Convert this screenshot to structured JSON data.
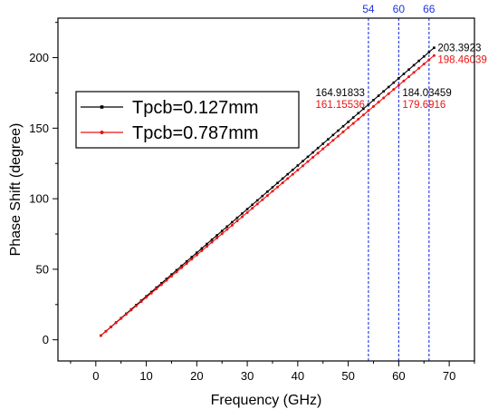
{
  "chart_data": {
    "type": "line",
    "xlabel": "Frequency (GHz)",
    "ylabel": "Phase Shift (degree)",
    "xlim": [
      -7.5,
      75
    ],
    "ylim": [
      -15,
      228
    ],
    "x_ticks": [
      0,
      10,
      20,
      30,
      40,
      50,
      60,
      70
    ],
    "y_ticks": [
      0,
      50,
      100,
      150,
      200
    ],
    "x_tick_labels": [
      "0",
      "10",
      "20",
      "30",
      "40",
      "50",
      "60",
      "70"
    ],
    "y_tick_labels": [
      "0",
      "50",
      "100",
      "150",
      "200"
    ],
    "grid": false,
    "legend_position": "upper-left",
    "series": [
      {
        "name": "Tpcb=0.127mm",
        "color": "#000000",
        "x_start": 1,
        "x_end": 67,
        "x_step": 1,
        "y_start": 3.0,
        "y_end": 207.0,
        "marker": "square"
      },
      {
        "name": "Tpcb=0.787mm",
        "color": "#ee1111",
        "x_start": 1,
        "x_end": 67,
        "x_step": 1,
        "y_start": 3.0,
        "y_end": 201.5,
        "marker": "circle"
      }
    ],
    "vlines": [
      {
        "x": 54,
        "label": "54",
        "color": "#2233dd"
      },
      {
        "x": 60,
        "label": "60",
        "color": "#2233dd"
      },
      {
        "x": 66,
        "label": "66",
        "color": "#2233dd"
      }
    ],
    "annotations": [
      {
        "text": "164.91833",
        "color": "#000000",
        "at_x": 54,
        "at_y": 164.92,
        "side": "left",
        "line": 0
      },
      {
        "text": "161.15536",
        "color": "#ee1111",
        "at_x": 54,
        "at_y": 164.92,
        "side": "left",
        "line": 1
      },
      {
        "text": "184.03459",
        "color": "#000000",
        "at_x": 60,
        "at_y": 164.92,
        "side": "right",
        "line": 0
      },
      {
        "text": "179.6916",
        "color": "#ee1111",
        "at_x": 60,
        "at_y": 164.92,
        "side": "right",
        "line": 1
      },
      {
        "text": "203.3923",
        "color": "#000000",
        "at_x": 67,
        "at_y": 207.0,
        "side": "right",
        "line": 0
      },
      {
        "text": "198.46039",
        "color": "#ee1111",
        "at_x": 67,
        "at_y": 207.0,
        "side": "right",
        "line": 1
      }
    ]
  }
}
